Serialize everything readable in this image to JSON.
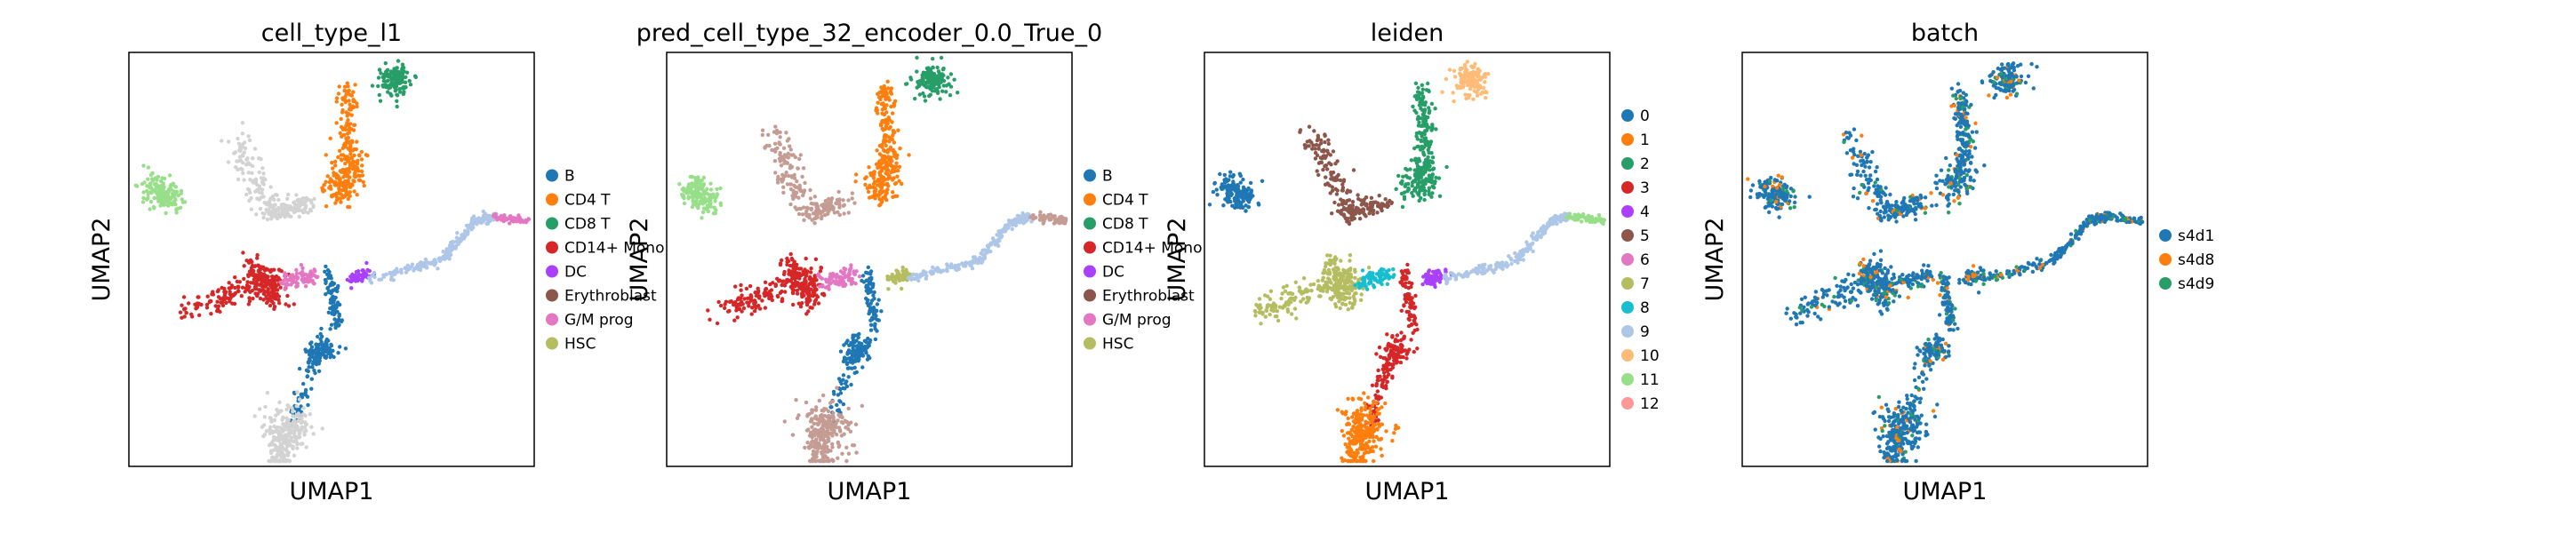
{
  "figure": {
    "colors": {
      "blue": "#1f77b4",
      "orange": "#ff7f0e",
      "green": "#279e68",
      "red": "#d62728",
      "purple": "#aa40fc",
      "brown": "#8c564b",
      "pink": "#e377c2",
      "olive": "#b5bd61",
      "cyan": "#17becf",
      "lightblue": "#aec7e8",
      "peach": "#ffbb78",
      "lightgreen": "#98df8a",
      "salmon": "#ff9896",
      "gray": "#d3d3d3"
    }
  },
  "chart_data": [
    {
      "type": "scatter",
      "title": "cell_type_l1",
      "xlabel": "UMAP1",
      "ylabel": "UMAP2",
      "legend": {
        "placement": "right",
        "entries": [
          {
            "label": "B",
            "color": "#1f77b4"
          },
          {
            "label": "CD4 T",
            "color": "#ff7f0e"
          },
          {
            "label": "CD8 T",
            "color": "#279e68"
          },
          {
            "label": "CD14+ Mono",
            "color": "#d62728"
          },
          {
            "label": "DC",
            "color": "#aa40fc"
          },
          {
            "label": "Erythroblast",
            "color": "#8c564b"
          },
          {
            "label": "G/M prog",
            "color": "#e377c2"
          },
          {
            "label": "HSC",
            "color": "#b5bd61"
          }
        ]
      },
      "clusters": [
        {
          "region": "top",
          "color": "#279e68"
        },
        {
          "region": "upper-mid",
          "color": "#ff7f0e"
        },
        {
          "region": "upper-left",
          "color": "#d3d3d3"
        },
        {
          "region": "far-left",
          "color": "#98df8a"
        },
        {
          "region": "mid-left",
          "color": "#d62728"
        },
        {
          "region": "mid-center",
          "color": "#e377c2"
        },
        {
          "region": "center",
          "color": "#aa40fc"
        },
        {
          "region": "right-arm",
          "color": "#aec7e8"
        },
        {
          "region": "right-tip",
          "color": "#e377c2"
        },
        {
          "region": "lower",
          "color": "#1f77b4"
        },
        {
          "region": "bottom",
          "color": "#d3d3d3"
        }
      ]
    },
    {
      "type": "scatter",
      "title": "pred_cell_type_32_encoder_0.0_True_0",
      "xlabel": "UMAP1",
      "ylabel": "UMAP2",
      "legend": {
        "placement": "right",
        "entries": [
          {
            "label": "B",
            "color": "#1f77b4"
          },
          {
            "label": "CD4 T",
            "color": "#ff7f0e"
          },
          {
            "label": "CD8 T",
            "color": "#279e68"
          },
          {
            "label": "CD14+ Mono",
            "color": "#d62728"
          },
          {
            "label": "DC",
            "color": "#aa40fc"
          },
          {
            "label": "Erythroblast",
            "color": "#8c564b"
          },
          {
            "label": "G/M prog",
            "color": "#e377c2"
          },
          {
            "label": "HSC",
            "color": "#b5bd61"
          }
        ]
      },
      "clusters": [
        {
          "region": "top",
          "color": "#279e68"
        },
        {
          "region": "upper-mid",
          "color": "#ff7f0e"
        },
        {
          "region": "upper-left",
          "color": "#c49c94"
        },
        {
          "region": "far-left",
          "color": "#98df8a"
        },
        {
          "region": "mid-left",
          "color": "#d62728"
        },
        {
          "region": "mid-center",
          "color": "#e377c2"
        },
        {
          "region": "center",
          "color": "#b5bd61"
        },
        {
          "region": "right-arm",
          "color": "#aec7e8"
        },
        {
          "region": "right-tip",
          "color": "#c49c94"
        },
        {
          "region": "lower",
          "color": "#1f77b4"
        },
        {
          "region": "bottom",
          "color": "#c49c94"
        }
      ]
    },
    {
      "type": "scatter",
      "title": "leiden",
      "xlabel": "UMAP1",
      "ylabel": "UMAP2",
      "legend": {
        "placement": "right",
        "entries": [
          {
            "label": "0",
            "color": "#1f77b4"
          },
          {
            "label": "1",
            "color": "#ff7f0e"
          },
          {
            "label": "2",
            "color": "#279e68"
          },
          {
            "label": "3",
            "color": "#d62728"
          },
          {
            "label": "4",
            "color": "#aa40fc"
          },
          {
            "label": "5",
            "color": "#8c564b"
          },
          {
            "label": "6",
            "color": "#e377c2"
          },
          {
            "label": "7",
            "color": "#b5bd61"
          },
          {
            "label": "8",
            "color": "#17becf"
          },
          {
            "label": "9",
            "color": "#aec7e8"
          },
          {
            "label": "10",
            "color": "#ffbb78"
          },
          {
            "label": "11",
            "color": "#98df8a"
          },
          {
            "label": "12",
            "color": "#ff9896"
          }
        ]
      },
      "clusters": [
        {
          "region": "top",
          "color": "#ffbb78"
        },
        {
          "region": "upper-mid",
          "color": "#279e68"
        },
        {
          "region": "upper-left",
          "color": "#8c564b"
        },
        {
          "region": "far-left",
          "color": "#1f77b4"
        },
        {
          "region": "mid-left",
          "color": "#b5bd61"
        },
        {
          "region": "mid-center",
          "color": "#17becf"
        },
        {
          "region": "center",
          "color": "#aa40fc"
        },
        {
          "region": "right-arm",
          "color": "#aec7e8"
        },
        {
          "region": "right-tip",
          "color": "#98df8a"
        },
        {
          "region": "lower",
          "color": "#d62728"
        },
        {
          "region": "bottom",
          "color": "#ff7f0e"
        }
      ]
    },
    {
      "type": "scatter",
      "title": "batch",
      "xlabel": "UMAP1",
      "ylabel": "UMAP2",
      "legend": {
        "placement": "right",
        "entries": [
          {
            "label": "s4d1",
            "color": "#1f77b4"
          },
          {
            "label": "s4d8",
            "color": "#ff7f0e"
          },
          {
            "label": "s4d9",
            "color": "#279e68"
          }
        ]
      },
      "clusters": [
        {
          "region": "top",
          "color": "#1f77b4"
        },
        {
          "region": "upper-mid",
          "color": "#1f77b4"
        },
        {
          "region": "upper-left",
          "color": "#1f77b4"
        },
        {
          "region": "far-left",
          "color": "#1f77b4"
        },
        {
          "region": "mid-left",
          "color": "#1f77b4"
        },
        {
          "region": "mid-center",
          "color": "#1f77b4"
        },
        {
          "region": "center",
          "color": "#1f77b4"
        },
        {
          "region": "right-arm",
          "color": "#1f77b4"
        },
        {
          "region": "right-tip",
          "color": "#1f77b4"
        },
        {
          "region": "lower",
          "color": "#1f77b4"
        },
        {
          "region": "bottom",
          "color": "#1f77b4"
        }
      ],
      "mixed_colors": [
        "#ff7f0e",
        "#279e68"
      ]
    }
  ]
}
